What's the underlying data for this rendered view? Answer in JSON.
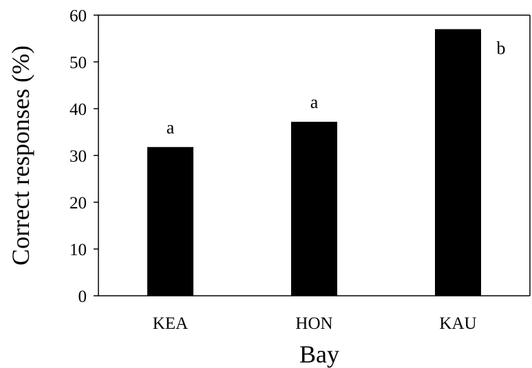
{
  "chart_data": {
    "type": "bar",
    "categories": [
      "KEA",
      "HON",
      "KAU"
    ],
    "values": [
      31.8,
      37.2,
      57.0
    ],
    "annotations": [
      "a",
      "a",
      "b"
    ],
    "xlabel": "Bay",
    "ylabel": "Correct responses (%)",
    "ylim": [
      0,
      60
    ],
    "yticks": [
      0,
      10,
      20,
      30,
      40,
      50,
      60
    ],
    "grid": false,
    "legend": "none",
    "bar_color": "#000000"
  }
}
